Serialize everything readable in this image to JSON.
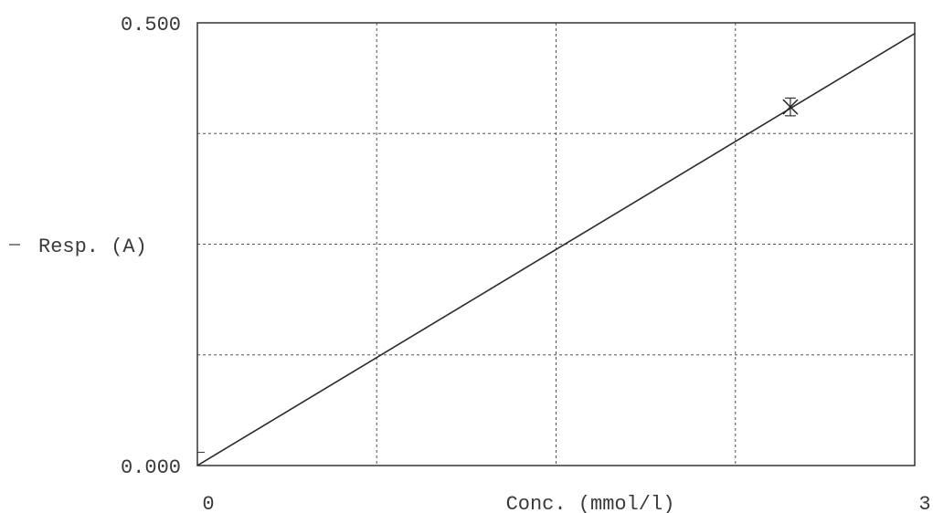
{
  "chart_data": {
    "type": "line",
    "title": "",
    "xlabel": "Conc. (mmol/l)",
    "ylabel": "Resp. (A)",
    "xlim": [
      0,
      3
    ],
    "ylim": [
      0.0,
      0.5
    ],
    "x_tick_labels": [
      "0",
      "3"
    ],
    "y_tick_labels": [
      "0.000",
      "0.500"
    ],
    "grid": true,
    "x_gridlines": [
      0.75,
      1.5,
      2.25
    ],
    "y_gridlines": [
      0.125,
      0.25,
      0.375
    ],
    "series": [
      {
        "kind": "calibration-line",
        "x": [
          0,
          3
        ],
        "y": [
          0.0,
          0.488
        ]
      },
      {
        "kind": "measured-point",
        "x": [
          2.48
        ],
        "y": [
          0.405
        ],
        "error": [
          0.01
        ]
      }
    ],
    "colors": {
      "line": "#2b2b2b",
      "grid": "#555555",
      "frame": "#333333"
    }
  }
}
